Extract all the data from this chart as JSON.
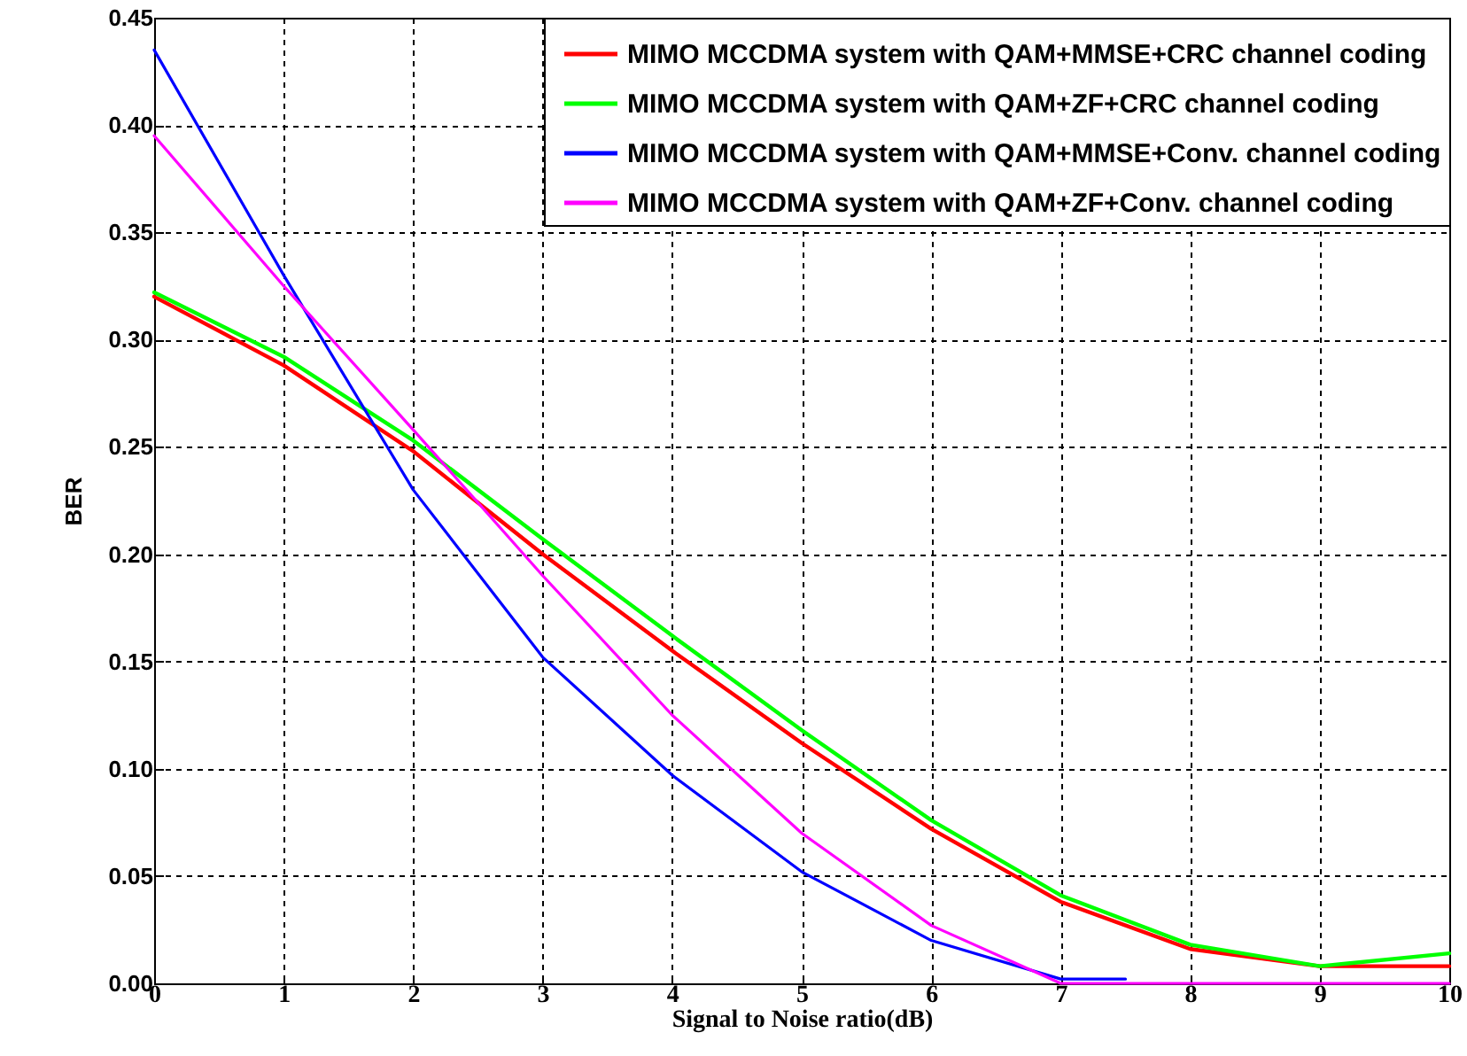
{
  "chart_data": {
    "type": "line",
    "xlabel": "Signal to Noise ratio(dB)",
    "ylabel": "BER",
    "x": [
      0,
      1,
      2,
      3,
      4,
      5,
      6,
      7,
      8,
      9,
      10
    ],
    "series": [
      {
        "name": "MIMO MCCDMA system with QAM+MMSE+CRC channel coding",
        "color": "#ff0000",
        "values": [
          0.32,
          0.288,
          0.248,
          0.2,
          0.155,
          0.112,
          0.072,
          0.038,
          0.016,
          0.008,
          0.008
        ]
      },
      {
        "name": "MIMO MCCDMA system with QAM+ZF+CRC channel coding",
        "color": "#00ff00",
        "values": [
          0.322,
          0.292,
          0.253,
          0.207,
          0.162,
          0.118,
          0.076,
          0.041,
          0.018,
          0.008,
          0.014
        ]
      },
      {
        "name": "MIMO MCCDMA system with QAM+MMSE+Conv. channel coding",
        "color": "#0000ff",
        "x": [
          0,
          1,
          2,
          3,
          4,
          5,
          6,
          7,
          7.5
        ],
        "values": [
          0.435,
          0.33,
          0.23,
          0.152,
          0.097,
          0.052,
          0.02,
          0.002,
          0.002
        ]
      },
      {
        "name": "MIMO MCCDMA system with QAM+ZF+Conv. channel coding",
        "color": "#ff00ff",
        "values": [
          0.395,
          0.325,
          0.258,
          0.19,
          0.125,
          0.07,
          0.027,
          0,
          0,
          0,
          0
        ]
      }
    ],
    "xlim": [
      0,
      10
    ],
    "xticks": [
      0,
      1,
      2,
      3,
      4,
      5,
      6,
      7,
      8,
      9,
      10
    ],
    "ylim": [
      0,
      0.45
    ],
    "yticks": [
      {
        "value": 0,
        "label": "0.00"
      },
      {
        "value": 0.05,
        "label": "0.05"
      },
      {
        "value": 0.1,
        "label": "0.10"
      },
      {
        "value": 0.15,
        "label": "0.15"
      },
      {
        "value": 0.2,
        "label": "0.20"
      },
      {
        "value": 0.25,
        "label": "0.25"
      },
      {
        "value": 0.3,
        "label": "0.30"
      },
      {
        "value": 0.35,
        "label": "0.35"
      },
      {
        "value": 0.4,
        "label": "0.40"
      },
      {
        "value": 0.45,
        "label": "0.45"
      }
    ],
    "grid": true,
    "legend": "top right",
    "line_style": "solid",
    "marker": "none"
  }
}
